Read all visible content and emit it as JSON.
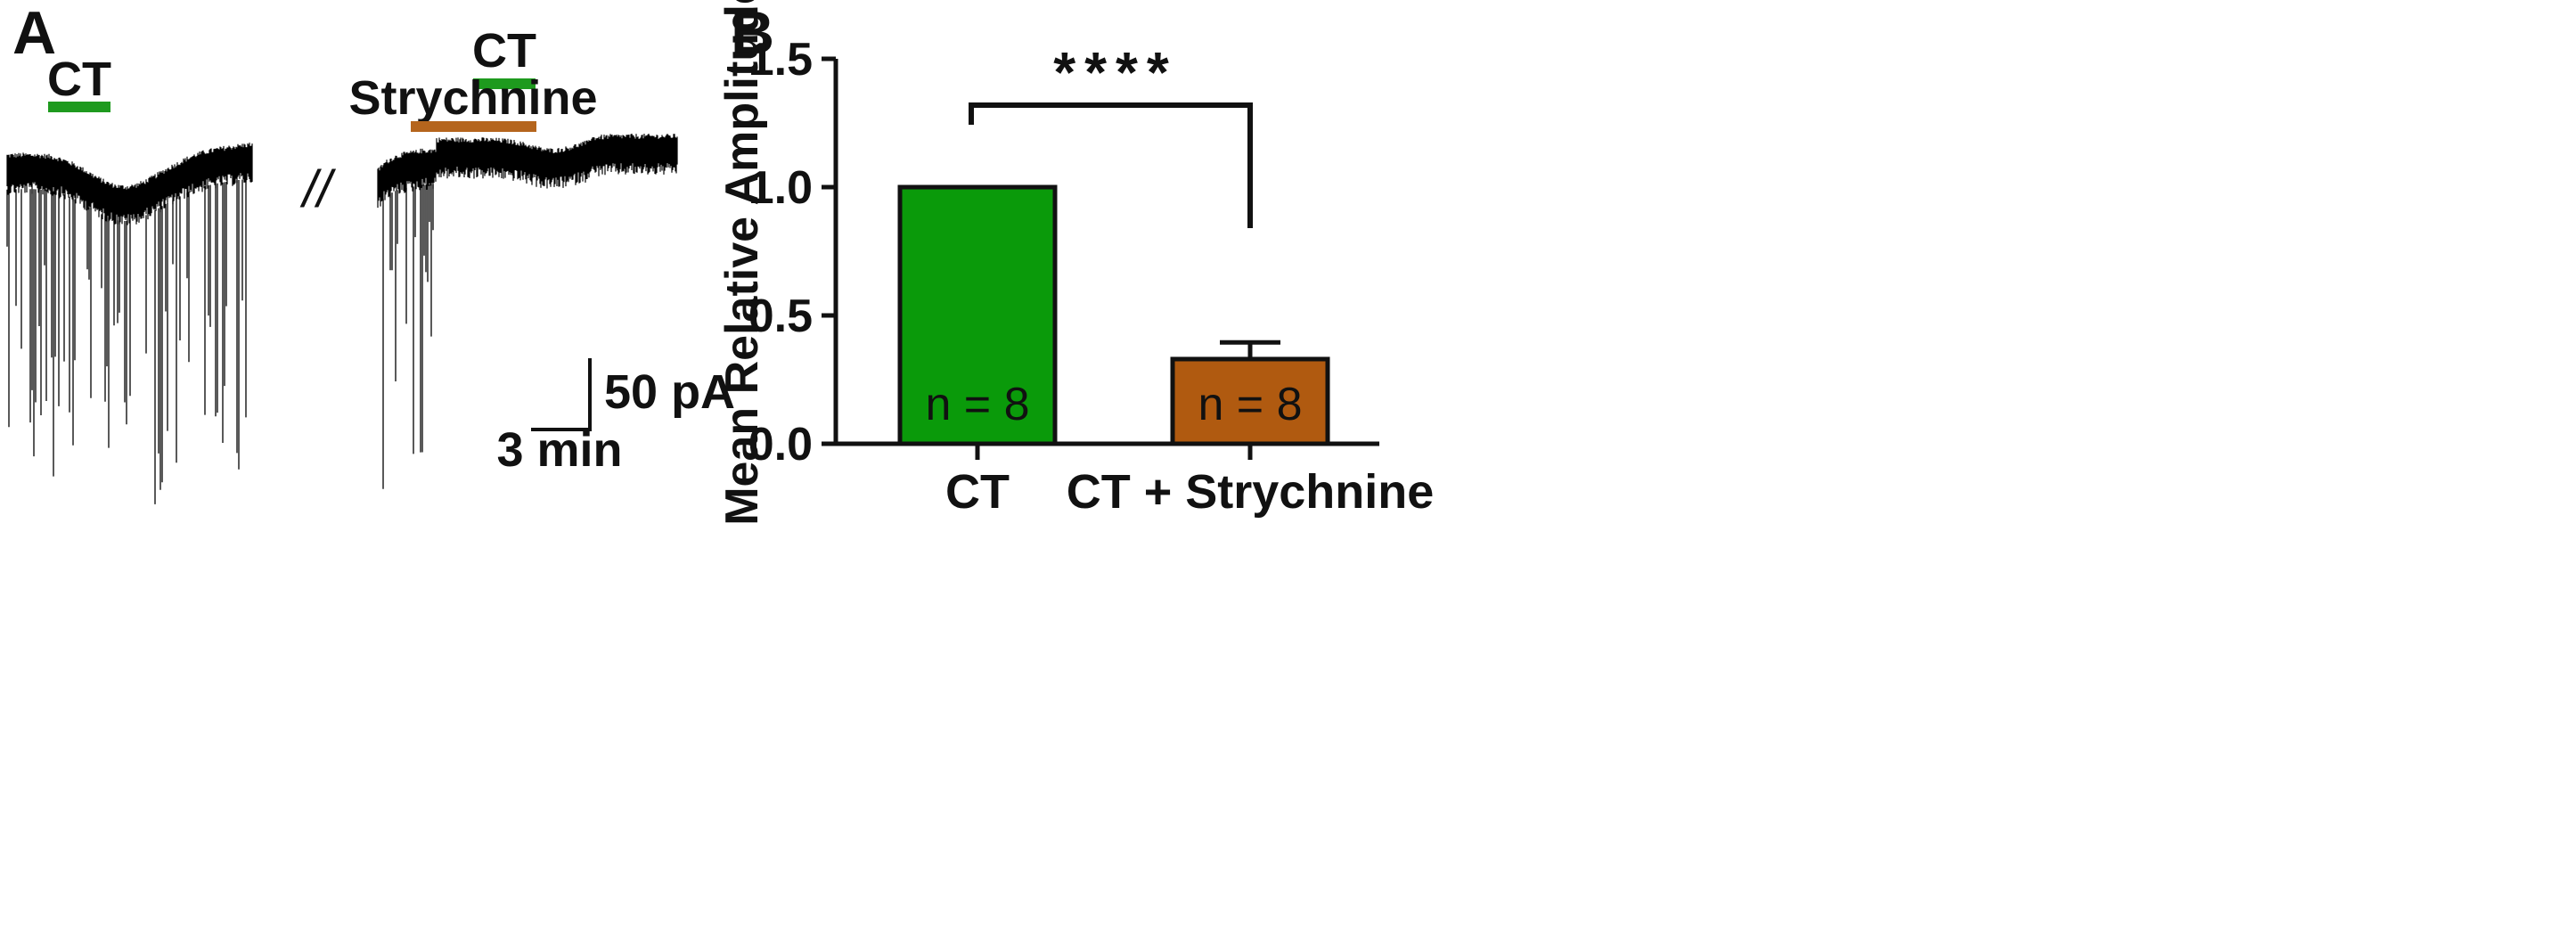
{
  "panels": {
    "a": {
      "letter": "A"
    },
    "b": {
      "letter": "B"
    }
  },
  "traces": {
    "left": {
      "drug_label": "CT",
      "drug_color": "#1e9a1e"
    },
    "right": {
      "drug_label": "CT",
      "drug_color": "#1e9a1e",
      "antagonist_label": "Strychnine",
      "antagonist_color": "#b5651d"
    },
    "break_marker": "//",
    "scale_bar": {
      "current_label": "50 pA",
      "time_label": "3 min"
    }
  },
  "chart_data": {
    "type": "bar",
    "title": "",
    "xlabel": "",
    "ylabel": "Mean Relative Amplitude",
    "ylim": [
      0,
      1.5
    ],
    "yticks": [
      0.0,
      0.5,
      1.0,
      1.5
    ],
    "ytick_labels": [
      "0.0",
      "0.5",
      "1.0",
      "1.5"
    ],
    "categories": [
      "CT",
      "CT + Strychnine"
    ],
    "values": [
      1.0,
      0.33
    ],
    "error": [
      0,
      0.065
    ],
    "colors": [
      "#0a9a0a",
      "#b05a10"
    ],
    "annotations": [
      "n = 8",
      "n = 8"
    ],
    "significance": "****",
    "grid": false
  }
}
